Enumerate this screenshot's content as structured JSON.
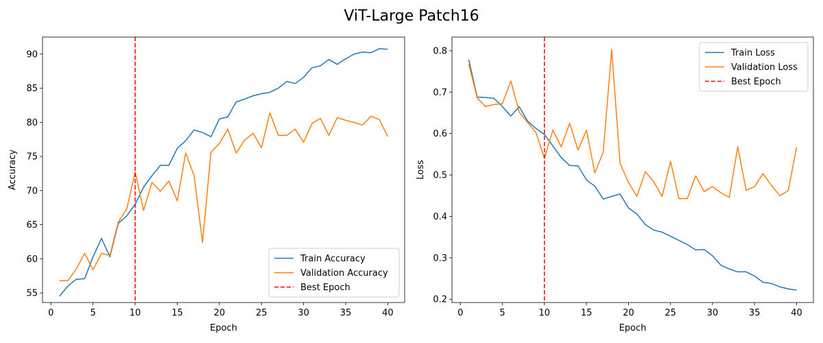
{
  "figure": {
    "title": "ViT-Large Patch16"
  },
  "chart_data": [
    {
      "type": "line",
      "title": "",
      "xlabel": "Epoch",
      "ylabel": "Accuracy",
      "xlim": [
        -1,
        42
      ],
      "ylim": [
        53.6,
        92.5
      ],
      "xticks": [
        0,
        5,
        10,
        15,
        20,
        25,
        30,
        35,
        40
      ],
      "yticks": [
        55,
        60,
        65,
        70,
        75,
        80,
        85,
        90
      ],
      "grid": false,
      "legend_position": "lower-right",
      "x": [
        1,
        2,
        3,
        4,
        5,
        6,
        7,
        8,
        9,
        10,
        11,
        12,
        13,
        14,
        15,
        16,
        17,
        18,
        19,
        20,
        21,
        22,
        23,
        24,
        25,
        26,
        27,
        28,
        29,
        30,
        31,
        32,
        33,
        34,
        35,
        36,
        37,
        38,
        39,
        40
      ],
      "series": [
        {
          "name": "Train Accuracy",
          "color": "#1f77b4",
          "style": "solid",
          "values": [
            54.5,
            56.0,
            57.0,
            57.1,
            60.3,
            63.0,
            60.3,
            65.2,
            66.3,
            68.0,
            70.5,
            72.2,
            73.7,
            73.7,
            76.2,
            77.3,
            78.9,
            78.5,
            77.9,
            80.5,
            80.8,
            83.0,
            83.4,
            83.9,
            84.2,
            84.4,
            85.0,
            86.0,
            85.7,
            86.6,
            88.0,
            88.3,
            89.2,
            88.5,
            89.3,
            90.0,
            90.3,
            90.2,
            90.8,
            90.7
          ]
        },
        {
          "name": "Validation Accuracy",
          "color": "#ff7f0e",
          "style": "solid",
          "values": [
            56.8,
            56.8,
            58.5,
            60.8,
            58.4,
            60.8,
            60.5,
            65.4,
            67.3,
            72.7,
            67.1,
            71.2,
            69.9,
            71.4,
            68.5,
            75.5,
            72.2,
            62.4,
            75.6,
            76.9,
            79.0,
            75.5,
            77.4,
            78.4,
            76.3,
            81.4,
            78.1,
            78.1,
            79.0,
            77.1,
            79.8,
            80.6,
            78.1,
            80.7,
            80.3,
            80.0,
            79.6,
            80.9,
            80.4,
            77.9
          ]
        }
      ],
      "reference_lines": [
        {
          "name": "Best Epoch",
          "orientation": "vertical",
          "x": 10,
          "color": "#ff0000",
          "style": "dashed"
        }
      ]
    },
    {
      "type": "line",
      "title": "",
      "xlabel": "Epoch",
      "ylabel": "Loss",
      "xlim": [
        -1,
        42
      ],
      "ylim": [
        0.192,
        0.833
      ],
      "xticks": [
        0,
        5,
        10,
        15,
        20,
        25,
        30,
        35,
        40
      ],
      "yticks": [
        0.2,
        0.3,
        0.4,
        0.5,
        0.6,
        0.7,
        0.8
      ],
      "grid": false,
      "legend_position": "upper-right",
      "x": [
        1,
        2,
        3,
        4,
        5,
        6,
        7,
        8,
        9,
        10,
        11,
        12,
        13,
        14,
        15,
        16,
        17,
        18,
        19,
        20,
        21,
        22,
        23,
        24,
        25,
        26,
        27,
        28,
        29,
        30,
        31,
        32,
        33,
        34,
        35,
        36,
        37,
        38,
        39,
        40
      ],
      "series": [
        {
          "name": "Train Loss",
          "color": "#1f77b4",
          "style": "solid",
          "values": [
            0.778,
            0.688,
            0.687,
            0.685,
            0.665,
            0.642,
            0.665,
            0.63,
            0.612,
            0.598,
            0.57,
            0.542,
            0.523,
            0.522,
            0.488,
            0.473,
            0.442,
            0.448,
            0.454,
            0.42,
            0.406,
            0.38,
            0.367,
            0.362,
            0.352,
            0.342,
            0.332,
            0.319,
            0.32,
            0.305,
            0.282,
            0.273,
            0.266,
            0.266,
            0.256,
            0.241,
            0.238,
            0.23,
            0.225,
            0.222
          ]
        },
        {
          "name": "Validation Loss",
          "color": "#ff7f0e",
          "style": "solid",
          "values": [
            0.768,
            0.686,
            0.665,
            0.67,
            0.672,
            0.727,
            0.652,
            0.627,
            0.602,
            0.54,
            0.608,
            0.568,
            0.625,
            0.56,
            0.608,
            0.505,
            0.555,
            0.803,
            0.528,
            0.482,
            0.448,
            0.508,
            0.484,
            0.448,
            0.533,
            0.443,
            0.443,
            0.498,
            0.46,
            0.472,
            0.457,
            0.446,
            0.568,
            0.463,
            0.472,
            0.503,
            0.475,
            0.45,
            0.462,
            0.567
          ]
        }
      ],
      "reference_lines": [
        {
          "name": "Best Epoch",
          "orientation": "vertical",
          "x": 10,
          "color": "#ff0000",
          "style": "dashed"
        }
      ]
    }
  ]
}
